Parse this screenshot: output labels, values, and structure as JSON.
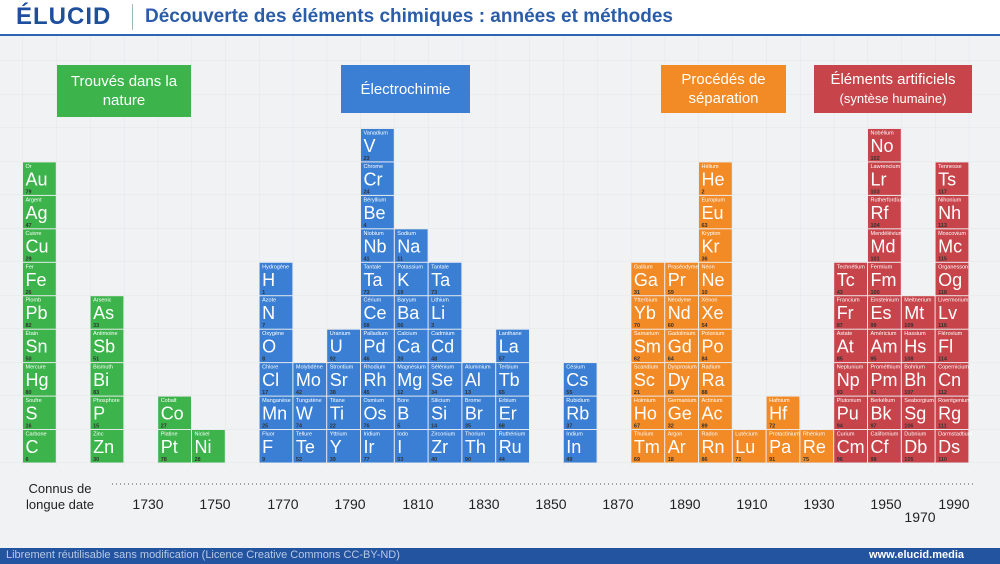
{
  "header": {
    "logo": "ÉLUCID",
    "title": "Découverte des éléments chimiques : années et méthodes"
  },
  "groups": [
    {
      "title": "Trouvés dans la nature",
      "color": "#3cb44b",
      "columns": [
        [
          [
            "Or",
            "Au",
            79
          ],
          [
            "Argent",
            "Ag",
            47
          ],
          [
            "Cuivre",
            "Cu",
            29
          ],
          [
            "Fer",
            "Fe",
            26
          ],
          [
            "Plomb",
            "Pb",
            82
          ],
          [
            "Étain",
            "Sn",
            50
          ],
          [
            "Mercure",
            "Hg",
            80
          ],
          [
            "Soufre",
            "S",
            16
          ],
          [
            "Carbone",
            "C",
            6
          ]
        ],
        [],
        [
          [
            "Arsenic",
            "As",
            33
          ],
          [
            "Antimoine",
            "Sb",
            51
          ],
          [
            "Bismuth",
            "Bi",
            83
          ],
          [
            "Phosphore",
            "P",
            15
          ],
          [
            "Zinc",
            "Zn",
            30
          ]
        ],
        [],
        [
          [
            "Cobalt",
            "Co",
            27
          ],
          [
            "Platine",
            "Pt",
            78
          ]
        ],
        [
          [
            "Nickel",
            "Ni",
            28
          ]
        ]
      ]
    },
    {
      "title": "Électrochimie",
      "color": "#3a7fd4",
      "columns": [
        [
          [
            "Hydrogène",
            "H",
            1
          ],
          [
            "Azote",
            "N",
            7
          ],
          [
            "Oxygène",
            "O",
            8
          ],
          [
            "Chlore",
            "Cl",
            17
          ],
          [
            "Manganèse",
            "Mn",
            25
          ],
          [
            "Fluor",
            "F",
            9
          ]
        ],
        [
          [
            "Molybdène",
            "Mo",
            42
          ],
          [
            "Tungstène",
            "W",
            74
          ],
          [
            "Tellure",
            "Te",
            52
          ]
        ],
        [
          [
            "Uranium",
            "U",
            92
          ],
          [
            "Strontium",
            "Sr",
            38
          ],
          [
            "Titane",
            "Ti",
            22
          ],
          [
            "Yttrium",
            "Y",
            39
          ]
        ],
        [
          [
            "Vanadium",
            "V",
            23
          ],
          [
            "Chrome",
            "Cr",
            24
          ],
          [
            "Béryllium",
            "Be",
            4
          ],
          [
            "Niobium",
            "Nb",
            41
          ],
          [
            "Tantale",
            "Ta",
            73
          ],
          [
            "Cérium",
            "Ce",
            58
          ],
          [
            "Palladium",
            "Pd",
            46
          ],
          [
            "Rhodium",
            "Rh",
            45
          ],
          [
            "Osmium",
            "Os",
            76
          ],
          [
            "Iridium",
            "Ir",
            77
          ]
        ],
        [
          [
            "Sodium",
            "Na",
            11
          ],
          [
            "Potassium",
            "K",
            19
          ],
          [
            "Baryum",
            "Ba",
            56
          ],
          [
            "Calcium",
            "Ca",
            20
          ],
          [
            "Magnésium",
            "Mg",
            12
          ],
          [
            "Bore",
            "B",
            5
          ],
          [
            "Iodo",
            "I",
            53
          ]
        ],
        [
          [
            "Tantale",
            "Ta",
            73
          ],
          [
            "Lithium",
            "Li",
            3
          ],
          [
            "Cadmium",
            "Cd",
            48
          ],
          [
            "Sélénium",
            "Se",
            34
          ],
          [
            "Silicium",
            "Si",
            14
          ],
          [
            "Zirconium",
            "Zr",
            40
          ]
        ],
        [
          [
            "Aluminium",
            "Al",
            13
          ],
          [
            "Brome",
            "Br",
            35
          ],
          [
            "Thorium",
            "Th",
            90
          ]
        ],
        [
          [
            "Lanthane",
            "La",
            57
          ],
          [
            "Terbium",
            "Tb",
            65
          ],
          [
            "Erbium",
            "Er",
            68
          ],
          [
            "Ruthénium",
            "Ru",
            44
          ]
        ],
        [],
        [
          [
            "Césium",
            "Cs",
            55
          ],
          [
            "Rubidium",
            "Rb",
            37
          ],
          [
            "Indium",
            "In",
            49
          ]
        ]
      ]
    },
    {
      "title": "Procédés de séparation",
      "color": "#f28a26",
      "columns": [
        [
          [
            "Gallium",
            "Ga",
            31
          ],
          [
            "Ytterbium",
            "Yb",
            70
          ],
          [
            "Samarium",
            "Sm",
            62
          ],
          [
            "Scandium",
            "Sc",
            21
          ],
          [
            "Holmium",
            "Ho",
            67
          ],
          [
            "Thulium",
            "Tm",
            69
          ]
        ],
        [
          [
            "Praséodyme",
            "Pr",
            59
          ],
          [
            "Néodyme",
            "Nd",
            60
          ],
          [
            "Gadolinium",
            "Gd",
            64
          ],
          [
            "Dysprosium",
            "Dy",
            66
          ],
          [
            "Germanium",
            "Ge",
            32
          ],
          [
            "Argon",
            "Ar",
            18
          ]
        ],
        [
          [
            "Hélium",
            "He",
            2
          ],
          [
            "Europium",
            "Eu",
            63
          ],
          [
            "Krypton",
            "Kr",
            36
          ],
          [
            "Néon",
            "Ne",
            10
          ],
          [
            "Xénon",
            "Xe",
            54
          ],
          [
            "Polonium",
            "Po",
            84
          ],
          [
            "Radium",
            "Ra",
            88
          ],
          [
            "Actinium",
            "Ac",
            89
          ],
          [
            "Radon",
            "Rn",
            86
          ]
        ],
        [
          [
            "Lutécium",
            "Lu",
            71
          ]
        ],
        [
          [
            "Hafnium",
            "Hf",
            72
          ],
          [
            "Protactinium",
            "Pa",
            91
          ]
        ],
        [
          [
            "Rhénium",
            "Re",
            75
          ]
        ]
      ]
    },
    {
      "title": "Éléments artificiels",
      "subtitle": "(syntèse humaine)",
      "color": "#c7444a",
      "columns": [
        [
          [
            "Technétium",
            "Tc",
            43
          ],
          [
            "Francium",
            "Fr",
            87
          ],
          [
            "Astate",
            "At",
            85
          ],
          [
            "Neptunium",
            "Np",
            93
          ],
          [
            "Plutonium",
            "Pu",
            94
          ],
          [
            "Curium",
            "Cm",
            96
          ]
        ],
        [
          [
            "Nobélium",
            "No",
            102
          ],
          [
            "Lawrencium",
            "Lr",
            103
          ],
          [
            "Rutherfordium",
            "Rf",
            104
          ],
          [
            "Mendélévium",
            "Md",
            101
          ],
          [
            "Fermium",
            "Fm",
            100
          ],
          [
            "Einsteinium",
            "Es",
            99
          ],
          [
            "Américium",
            "Am",
            95
          ],
          [
            "Prométhium",
            "Pm",
            61
          ],
          [
            "Berkélium",
            "Bk",
            97
          ],
          [
            "Californium",
            "Cf",
            98
          ]
        ],
        [
          [
            "Meitnerium",
            "Mt",
            109
          ],
          [
            "Hassium",
            "Hs",
            108
          ],
          [
            "Bohrium",
            "Bh",
            107
          ],
          [
            "Seaborgium",
            "Sg",
            106
          ],
          [
            "Dubnium",
            "Db",
            105
          ]
        ],
        [
          [
            "Tennesse",
            "Ts",
            117
          ],
          [
            "Nihonium",
            "Nh",
            113
          ],
          [
            "Moscovium",
            "Mc",
            115
          ],
          [
            "Organesson",
            "Og",
            118
          ],
          [
            "Livermorium",
            "Lv",
            116
          ],
          [
            "Flérovium",
            "Fl",
            114
          ],
          [
            "Copernicium",
            "Cn",
            112
          ],
          [
            "Roentgenium",
            "Rg",
            111
          ],
          [
            "Darmstadtium",
            "Ds",
            110
          ]
        ]
      ]
    }
  ],
  "axis": {
    "label": "Connus de longue date",
    "ticks": [
      1730,
      1750,
      1770,
      1790,
      1810,
      1830,
      1850,
      1870,
      1890,
      1910,
      1930,
      1950,
      1970,
      1990
    ]
  },
  "footer": {
    "license": "Librement réutilisable sans modification (Licence Creative Commons CC-BY-ND)",
    "site": "www.elucid.media"
  }
}
